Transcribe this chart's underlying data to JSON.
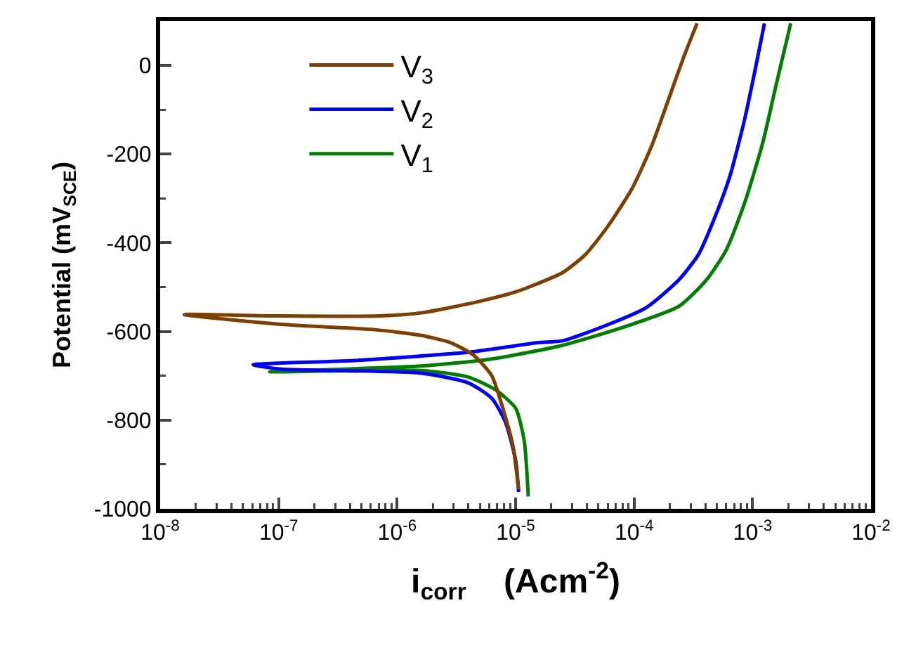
{
  "chart_data": {
    "type": "line",
    "xlabel": "i$_{corr}$    (Acm$^{-2}$)",
    "ylabel": "Potential (mV$_{SCE}$)",
    "log": "x",
    "xlim": [
      1e-08,
      0.01
    ],
    "ylim": [
      -1000,
      100
    ],
    "xticks": [
      {
        "value": 1e-08,
        "label": "10$^{-8}$"
      },
      {
        "value": 1e-07,
        "label": "10$^{-7}$"
      },
      {
        "value": 1e-06,
        "label": "10$^{-6}$"
      },
      {
        "value": 1e-05,
        "label": "10$^{-5}$"
      },
      {
        "value": 0.0001,
        "label": "10$^{-4}$"
      },
      {
        "value": 0.001,
        "label": "10$^{-3}$"
      },
      {
        "value": 0.01,
        "label": "10$^{-2}$"
      }
    ],
    "yticks": [
      -1000,
      -800,
      -600,
      -400,
      -200,
      0
    ],
    "grid": false,
    "legend": "top left",
    "line_style": "solid",
    "series": [
      {
        "name": "V$_{3}$",
        "color": "#7f3f00",
        "x": [
          1.06e-05,
          9.5e-06,
          7.8e-06,
          6.3e-06,
          4.4e-06,
          2.8e-06,
          1.6e-06,
          6.5e-07,
          1.05e-07,
          1.6e-08,
          1.05e-07,
          7.1e-07,
          1.6e-06,
          4.8e-06,
          1e-05,
          2.5e-05,
          3.9e-05,
          6e-05,
          9.6e-05,
          0.00014,
          0.0002,
          0.00026,
          0.00034
        ],
        "values": [
          -956,
          -858,
          -773,
          -700,
          -653,
          -625,
          -609,
          -596,
          -584,
          -562,
          -565,
          -565,
          -558,
          -533,
          -511,
          -467,
          -426,
          -363,
          -278,
          -183,
          -69,
          16,
          95
        ]
      },
      {
        "name": "V$_{2}$",
        "color": "#0000ff",
        "x": [
          1.06e-05,
          1e-05,
          8.2e-06,
          6.3e-06,
          4e-06,
          1.6e-06,
          1.05e-07,
          6.1e-08,
          4.1e-07,
          4e-06,
          6.3e-06,
          1.55e-05,
          2.5e-05,
          6.1e-05,
          0.000127,
          0.00024,
          0.00035,
          0.0005,
          0.00065,
          0.00086,
          0.00104,
          0.00126
        ],
        "values": [
          -962,
          -890,
          -804,
          -751,
          -716,
          -694,
          -685,
          -675,
          -666,
          -647,
          -640,
          -625,
          -621,
          -584,
          -546,
          -483,
          -426,
          -331,
          -246,
          -120,
          -16,
          95
        ]
      },
      {
        "name": "V$_{1}$",
        "color": "#007f00",
        "x": [
          1.28e-05,
          1.18e-05,
          1e-05,
          6.8e-06,
          4e-06,
          1.6e-06,
          8.4e-08,
          1.6e-06,
          6.3e-06,
          2.5e-05,
          9.6e-05,
          0.00024,
          0.00041,
          0.0006,
          0.00086,
          0.00122,
          0.0016,
          0.0021
        ],
        "values": [
          -972,
          -845,
          -773,
          -732,
          -703,
          -688,
          -691,
          -678,
          -662,
          -631,
          -584,
          -543,
          -483,
          -416,
          -309,
          -174,
          -38,
          95
        ]
      }
    ]
  }
}
